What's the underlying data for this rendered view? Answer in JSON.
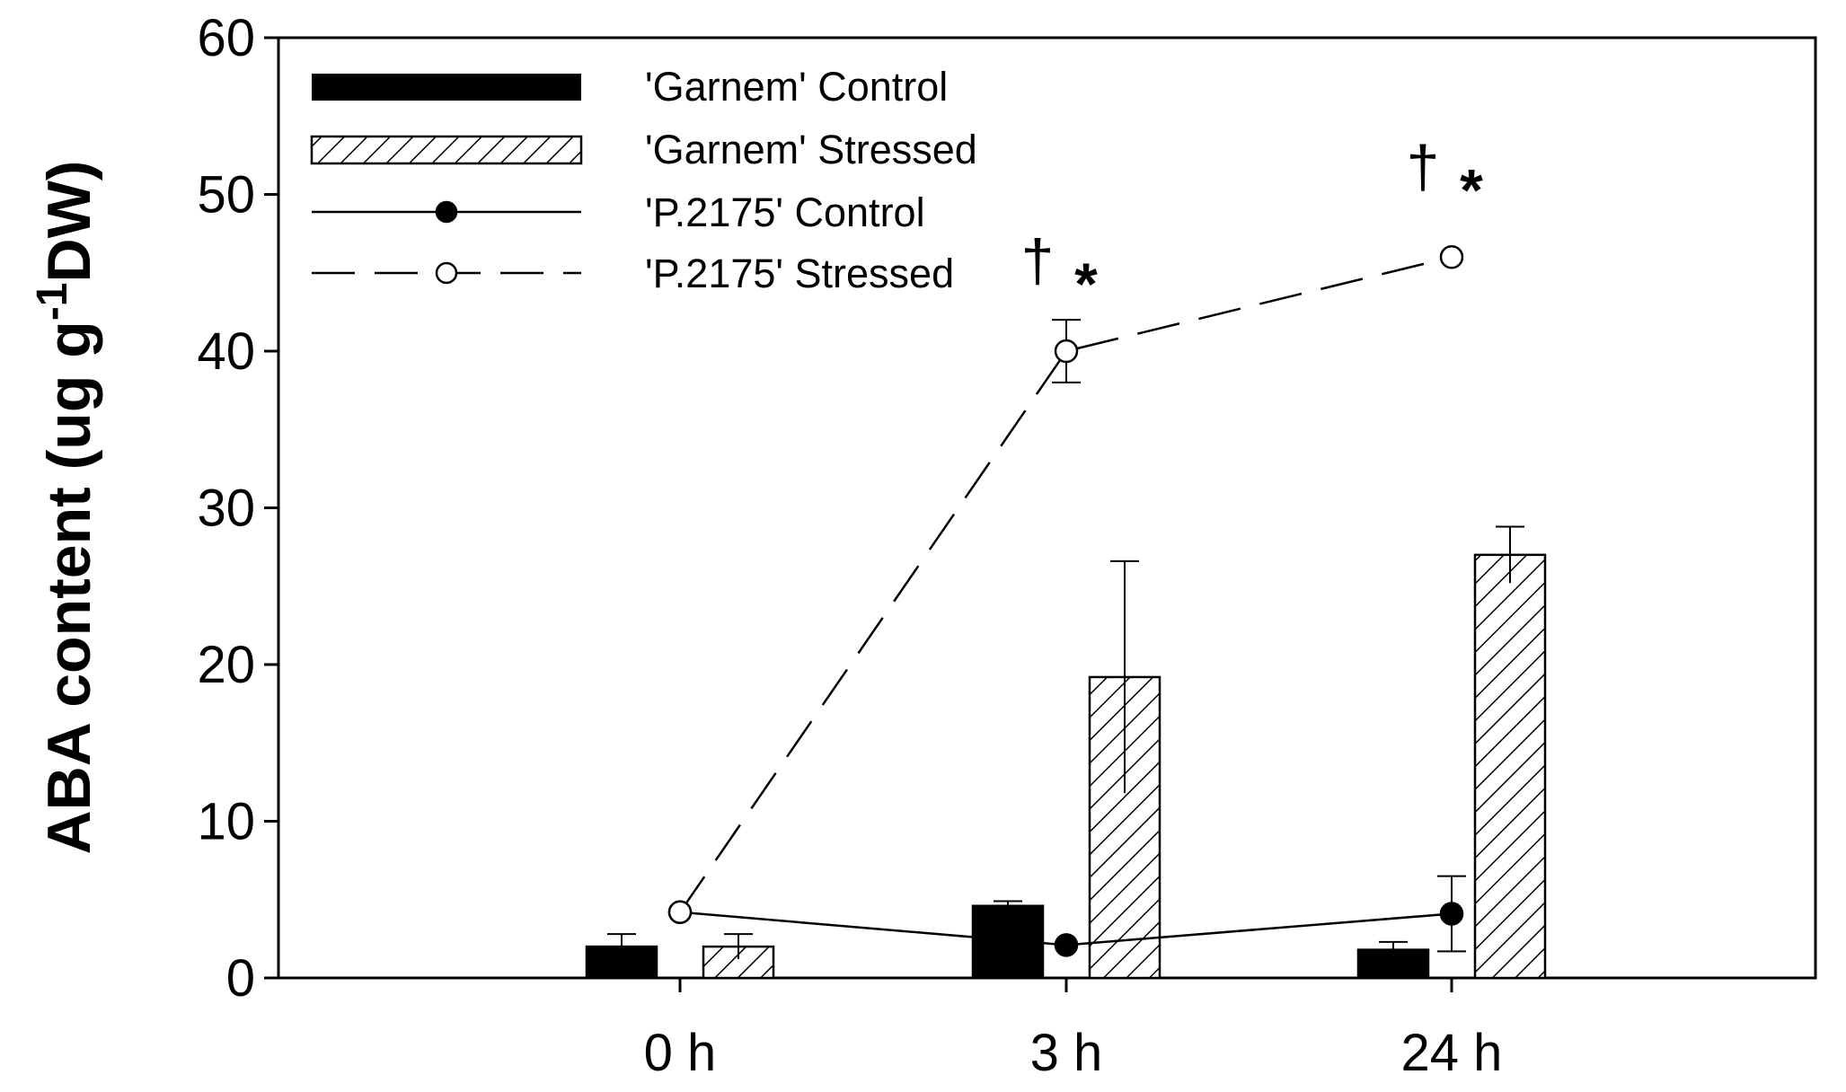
{
  "chart_data": {
    "type": "bar",
    "ylabel_main": "ABA content (ug g",
    "ylabel_sup": "-1",
    "ylabel_end": "DW)",
    "ylim": [
      0,
      60
    ],
    "yticks": [
      "0",
      "10",
      "20",
      "30",
      "40",
      "50",
      "60"
    ],
    "categories": [
      "0 h",
      "3 h",
      "24 h"
    ],
    "bar_series": [
      {
        "name": "'Garnem' Control",
        "pattern": "solid",
        "values": [
          2.0,
          4.6,
          1.8
        ],
        "errors": [
          0.8,
          0.3,
          0.5
        ]
      },
      {
        "name": "'Garnem' Stressed",
        "pattern": "hatched",
        "values": [
          2.0,
          19.2,
          27.0
        ],
        "errors": [
          0.8,
          7.4,
          1.8
        ]
      }
    ],
    "line_series": [
      {
        "name": "'P.2175' Control",
        "marker": "filled-circle",
        "linestyle": "solid",
        "values": [
          4.2,
          2.1,
          4.1
        ],
        "errors": [
          0,
          0,
          2.4
        ]
      },
      {
        "name": "'P.2175' Stressed",
        "marker": "open-circle",
        "linestyle": "dashed",
        "values": [
          4.2,
          40.0,
          46.0
        ],
        "errors": [
          0,
          2.0,
          0
        ]
      }
    ],
    "annotations": [
      {
        "category": "3 h",
        "text": "†",
        "text2": "*"
      },
      {
        "category": "24 h",
        "text": "†",
        "text2": "*"
      }
    ],
    "legend_position": "top-left",
    "grid": false
  },
  "colors": {
    "ink": "#000000",
    "background": "#ffffff"
  }
}
